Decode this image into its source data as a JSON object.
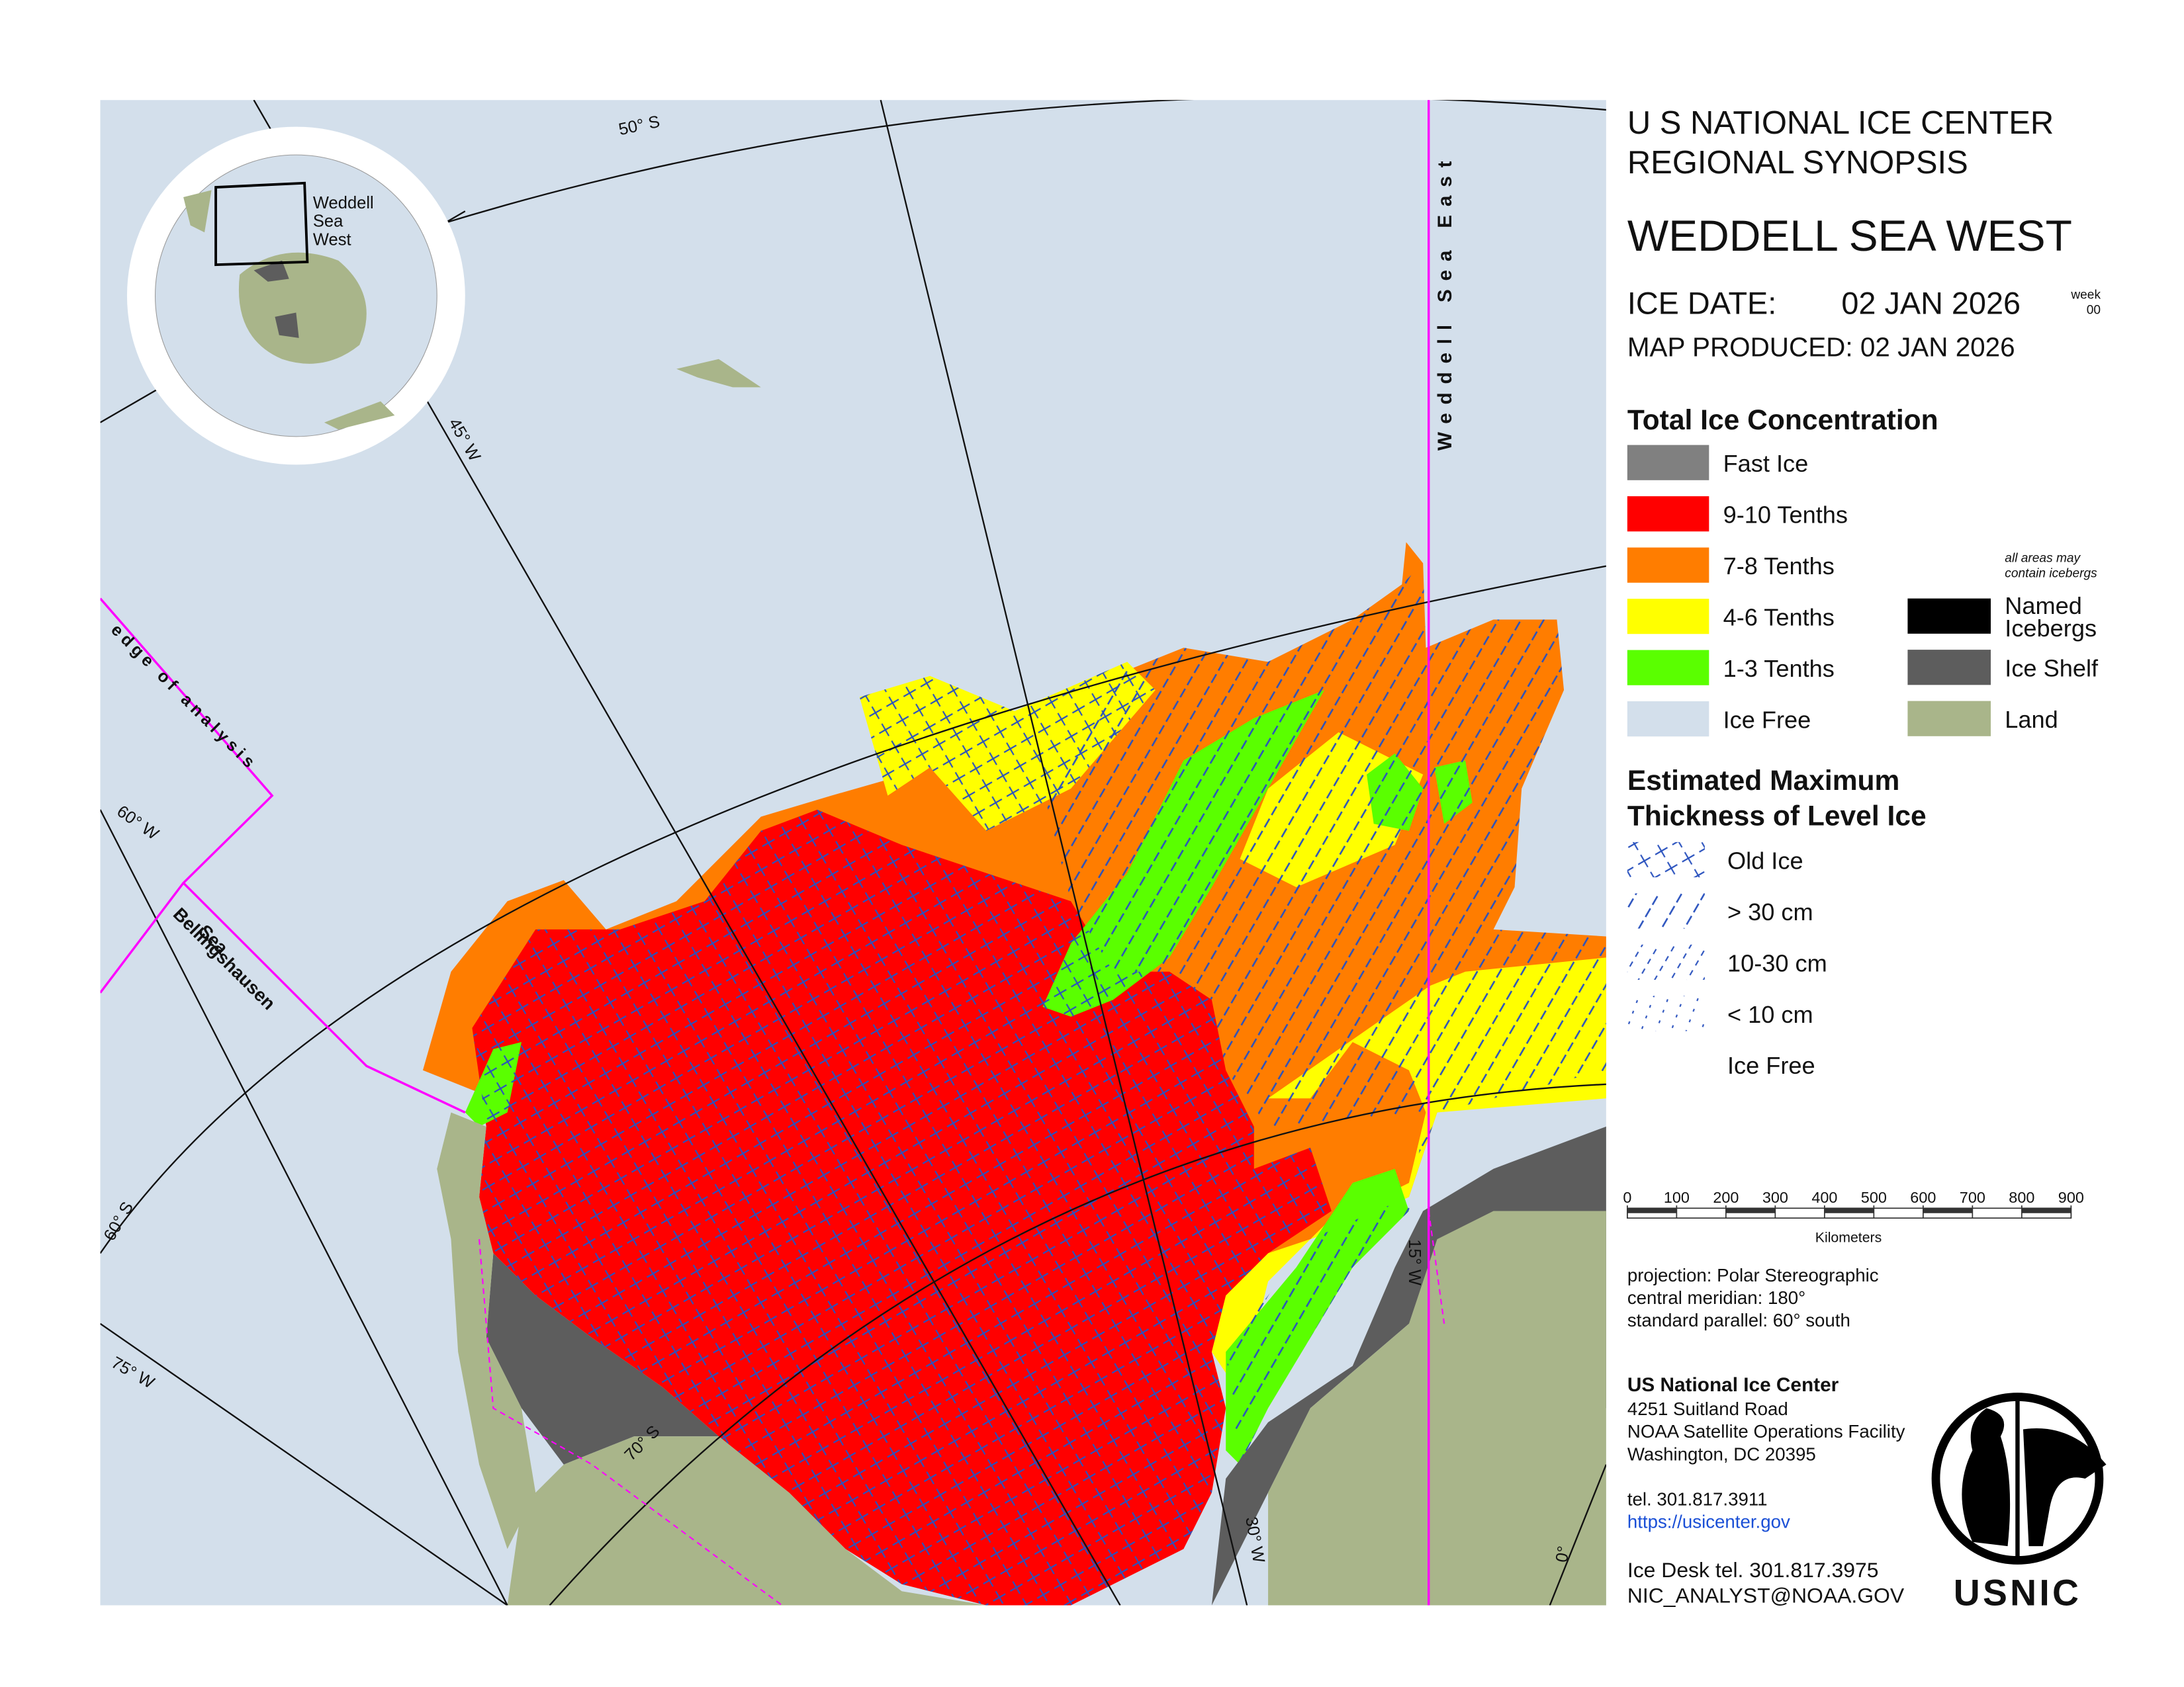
{
  "header": {
    "line1": "U S NATIONAL ICE CENTER",
    "line2": "REGIONAL SYNOPSIS",
    "region": "WEDDELL SEA WEST",
    "ice_date_label": "ICE DATE:",
    "ice_date": "02 JAN 2026",
    "week_label": "week",
    "week": "00",
    "map_produced": "MAP PRODUCED:  02 JAN 2026"
  },
  "concentration_legend": {
    "title": "Total Ice Concentration",
    "items": [
      {
        "label": "Fast Ice",
        "color": "#808080"
      },
      {
        "label": "9-10 Tenths",
        "color": "#ff0000"
      },
      {
        "label": "7-8 Tenths",
        "color": "#ff7d00"
      },
      {
        "label": "4-6 Tenths",
        "color": "#ffff00"
      },
      {
        "label": "1-3 Tenths",
        "color": "#5aff00"
      },
      {
        "label": "Ice Free",
        "color": "#d3dfeb"
      }
    ],
    "note": [
      "all areas may",
      "contain icebergs"
    ],
    "extra_items": [
      {
        "label_lines": [
          "Named",
          "Icebergs"
        ],
        "color": "#000000"
      },
      {
        "label_lines": [
          "Ice Shelf"
        ],
        "color": "#5d5d5d"
      },
      {
        "label_lines": [
          "Land"
        ],
        "color": "#a9b58a"
      }
    ]
  },
  "thickness_legend": {
    "title_lines": [
      "Estimated Maximum",
      "Thickness of Level Ice"
    ],
    "items": [
      "Old Ice",
      "> 30 cm",
      "10-30 cm",
      "< 10 cm",
      "Ice Free"
    ]
  },
  "scale_bar": {
    "ticks": [
      0,
      100,
      200,
      300,
      400,
      500,
      600,
      700,
      800,
      900
    ],
    "unit": "Kilometers"
  },
  "projection": [
    "projection: Polar Stereographic",
    "central meridian: 180°",
    "standard parallel:  60° south"
  ],
  "contact": {
    "name": "US National Ice Center",
    "address": [
      "4251 Suitland Road",
      "NOAA Satellite Operations Facility",
      "Washington, DC  20395"
    ],
    "tel": "tel. 301.817.3911",
    "url": "https://usicenter.gov",
    "desk_tel": "Ice Desk tel. 301.817.3975",
    "email": "NIC_ANALYST@NOAA.GOV"
  },
  "logo": "USNIC",
  "map_labels": {
    "lat50": "50° S",
    "lon45": "45° W",
    "lon60": "60° W",
    "lat60": "60° S",
    "lon75": "75° W",
    "lat70": "70° S",
    "lon30": "30° W",
    "lon15": "15° W",
    "lon0": "0°",
    "east_region": "Weddell Sea East",
    "edge": "edge of analysis",
    "bellingshausen": [
      "Bellingshausen",
      "Sea"
    ],
    "inset": [
      "Weddell",
      "Sea",
      "West"
    ]
  }
}
